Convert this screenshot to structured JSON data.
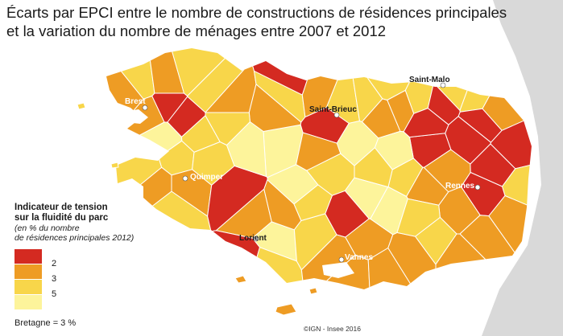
{
  "title": {
    "line1": "Écarts par EPCI entre le nombre de constructions de résidences principales",
    "line2": "et la variation du nombre de ménages entre 2007 et 2012"
  },
  "colors": {
    "red": "#d42a21",
    "orange": "#ee9c24",
    "yellow": "#f8d64a",
    "pale": "#fdf49b",
    "sea": "#ffffff",
    "neighbour": "#d9d9d9",
    "border": "#ffffff"
  },
  "legend": {
    "title_line1": "Indicateur de tension",
    "title_line2": "sur la fluidité du parc",
    "subtitle_line1": "(en % du nombre",
    "subtitle_line2": "de résidences principales 2012)",
    "breaks": [
      "2",
      "3",
      "5"
    ],
    "classes": [
      "red",
      "orange",
      "yellow",
      "pale"
    ]
  },
  "footnote": "Bretagne = 3 %",
  "credit": "©IGN - Insee 2016",
  "cities": [
    {
      "name": "Brest",
      "style": "light"
    },
    {
      "name": "Saint-Malo",
      "style": "dark"
    },
    {
      "name": "Saint-Brieuc",
      "style": "dark"
    },
    {
      "name": "Quimper",
      "style": "light"
    },
    {
      "name": "Rennes",
      "style": "light"
    },
    {
      "name": "Lorient",
      "style": "dark"
    },
    {
      "name": "Vannes",
      "style": "light"
    }
  ]
}
